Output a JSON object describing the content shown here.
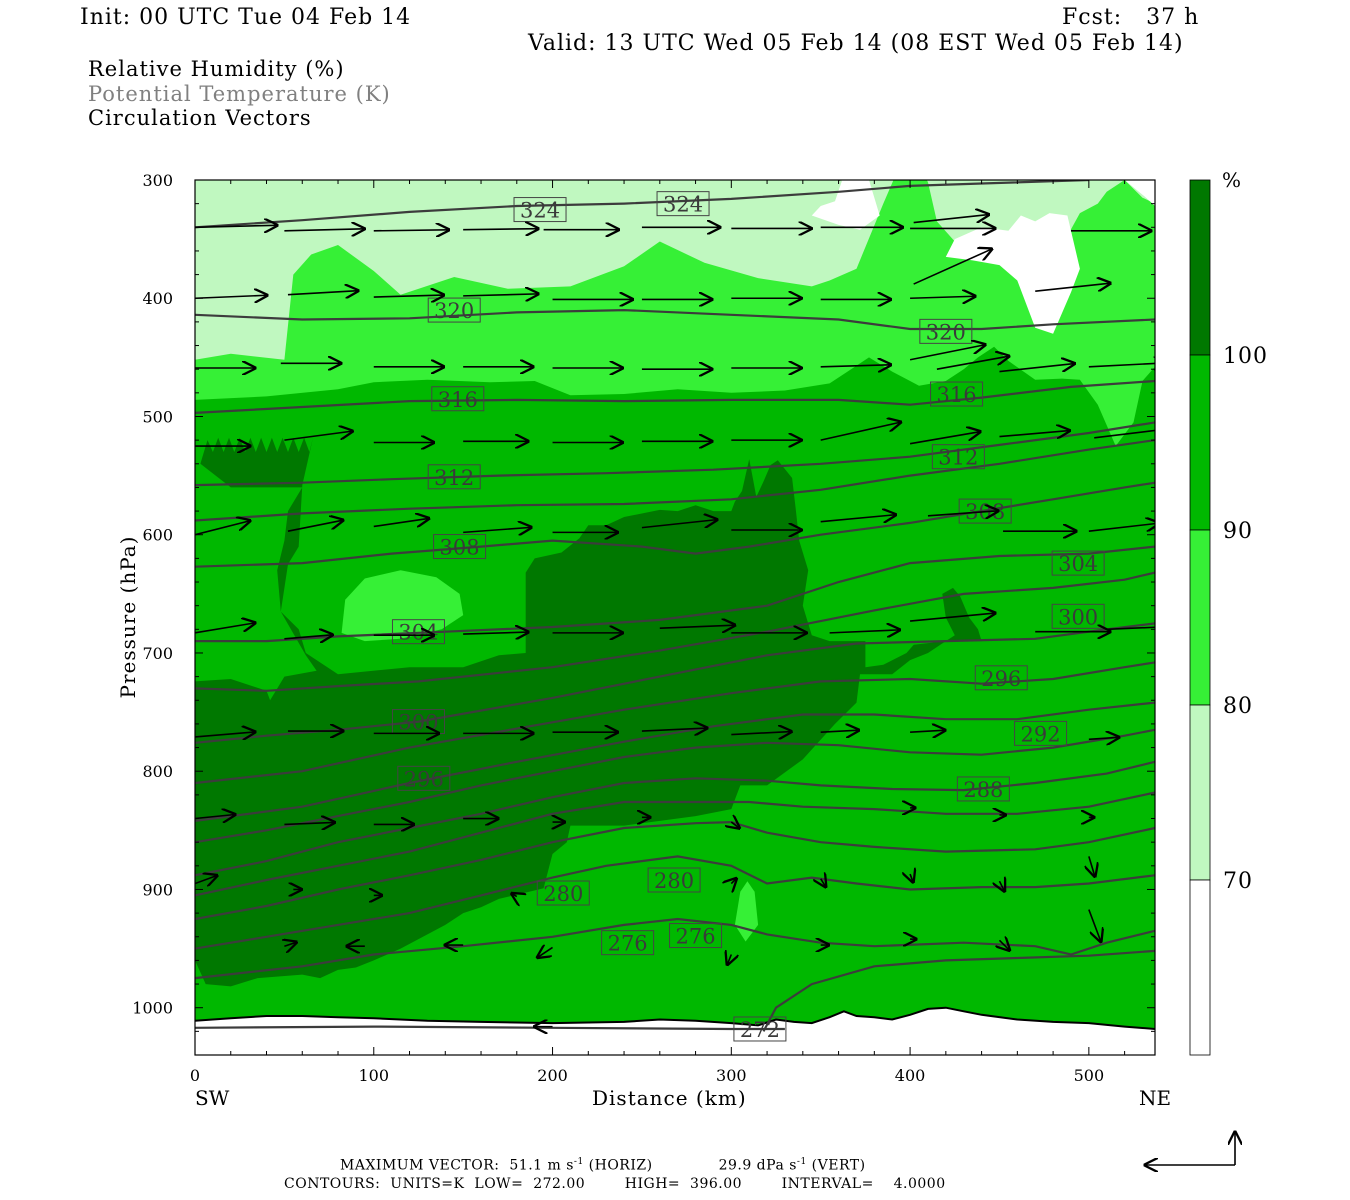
{
  "header": {
    "init": "Init: 00 UTC Tue 04 Feb 14",
    "fcst": "Fcst:   37 h",
    "valid": "Valid: 13 UTC Wed 05 Feb 14 (08 EST Wed 05 Feb 14)"
  },
  "legend_lines": {
    "rh": "Relative Humidity (%)",
    "theta": "Potential Temperature (K)",
    "vectors": "Circulation Vectors"
  },
  "footer": {
    "max_vector": "MAXIMUM VECTOR:  51.1 m s",
    "max_vector_horiz": " (HORIZ)",
    "max_vector_vert": "29.9 dPa s",
    "max_vector_vert_suffix": " (VERT)",
    "exp": "-1",
    "contours": "CONTOURS:  UNITS=K  LOW=  272.00        HIGH=  396.00        INTERVAL=    4.0000"
  },
  "colors": {
    "rh_below_70": "#ffffff",
    "rh_70_80": "#c0f8c0",
    "rh_80_90": "#36f036",
    "rh_90_100": "#00b800",
    "rh_100": "#007800",
    "theta_line": "#3c3c3c",
    "vector": "#000000"
  },
  "chart_data": {
    "type": "heatmap",
    "title": "Relative Humidity (%)",
    "xlabel": "Distance (km)",
    "ylabel": "Pressure (hPa)",
    "x_endpoint_labels": [
      "SW",
      "NE"
    ],
    "xlim": [
      0,
      537
    ],
    "ylim": [
      1040,
      300
    ],
    "x_ticks": [
      0,
      100,
      200,
      300,
      400,
      500
    ],
    "y_ticks": [
      300,
      400,
      500,
      600,
      700,
      800,
      900,
      1000
    ],
    "colorbar": {
      "unit": "%",
      "levels": [
        70,
        80,
        90,
        100
      ],
      "colors": [
        "#ffffff",
        "#c0f8c0",
        "#36f036",
        "#00b800",
        "#007800"
      ]
    },
    "theta_contours": {
      "units": "K",
      "low": 272,
      "high": 396,
      "interval": 4,
      "labels": [
        {
          "value": 324,
          "x": 193,
          "p": 325
        },
        {
          "value": 324,
          "x": 273,
          "p": 320
        },
        {
          "value": 320,
          "x": 145,
          "p": 410
        },
        {
          "value": 320,
          "x": 420,
          "p": 428
        },
        {
          "value": 316,
          "x": 147,
          "p": 485
        },
        {
          "value": 316,
          "x": 426,
          "p": 481
        },
        {
          "value": 312,
          "x": 145,
          "p": 551
        },
        {
          "value": 312,
          "x": 427,
          "p": 534
        },
        {
          "value": 308,
          "x": 148,
          "p": 610
        },
        {
          "value": 308,
          "x": 442,
          "p": 580
        },
        {
          "value": 304,
          "x": 125,
          "p": 682
        },
        {
          "value": 304,
          "x": 494,
          "p": 624
        },
        {
          "value": 300,
          "x": 125,
          "p": 758
        },
        {
          "value": 300,
          "x": 494,
          "p": 669
        },
        {
          "value": 296,
          "x": 128,
          "p": 806
        },
        {
          "value": 296,
          "x": 451,
          "p": 721
        },
        {
          "value": 292,
          "x": 473,
          "p": 768
        },
        {
          "value": 288,
          "x": 441,
          "p": 815
        },
        {
          "value": 280,
          "x": 206,
          "p": 903
        },
        {
          "value": 280,
          "x": 268,
          "p": 892
        },
        {
          "value": 276,
          "x": 242,
          "p": 945
        },
        {
          "value": 276,
          "x": 280,
          "p": 939
        },
        {
          "value": 272,
          "x": 316,
          "p": 1018
        }
      ]
    },
    "vectors": {
      "max_horizontal_m_s": 51.1,
      "max_vertical_dPa_s": 29.9
    }
  }
}
